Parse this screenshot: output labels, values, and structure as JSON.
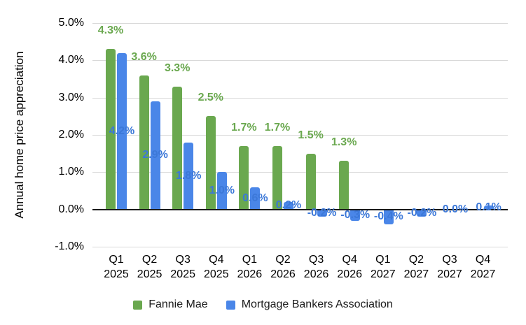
{
  "chart_data": {
    "type": "bar",
    "title": "",
    "y_axis_title": "Annual home price appreciation",
    "categories": [
      "Q1 2025",
      "Q2 2025",
      "Q3 2025",
      "Q4 2025",
      "Q1 2026",
      "Q2 2026",
      "Q3 2026",
      "Q4 2026",
      "Q1 2027",
      "Q2 2027",
      "Q3 2027",
      "Q4 2027"
    ],
    "series": [
      {
        "name": "Fannie Mae",
        "bar_color": "#6aa84f",
        "label_color": "#6aa84f",
        "values": [
          4.3,
          3.6,
          3.3,
          2.5,
          1.7,
          1.7,
          1.5,
          1.3,
          null,
          null,
          null,
          null
        ]
      },
      {
        "name": "Mortgage Bankers Association",
        "bar_color": "#4a86e8",
        "label_color": "#3c78d8",
        "values": [
          4.2,
          2.9,
          1.8,
          1.0,
          0.6,
          0.2,
          -0.2,
          -0.3,
          -0.4,
          -0.2,
          0.0,
          0.1
        ]
      }
    ],
    "y_ticks": [
      "5.0%",
      "4.0%",
      "3.0%",
      "2.0%",
      "1.0%",
      "0.0%",
      "-1.0%"
    ],
    "y_tick_values": [
      5,
      4,
      3,
      2,
      1,
      0,
      -1
    ],
    "ylim": [
      -1,
      5
    ],
    "grid": true,
    "legend_position": "bottom",
    "colors": {
      "gridline": "#d9d9d9",
      "zero_line": "#1a1a1a",
      "axis_text": "#000000"
    }
  }
}
